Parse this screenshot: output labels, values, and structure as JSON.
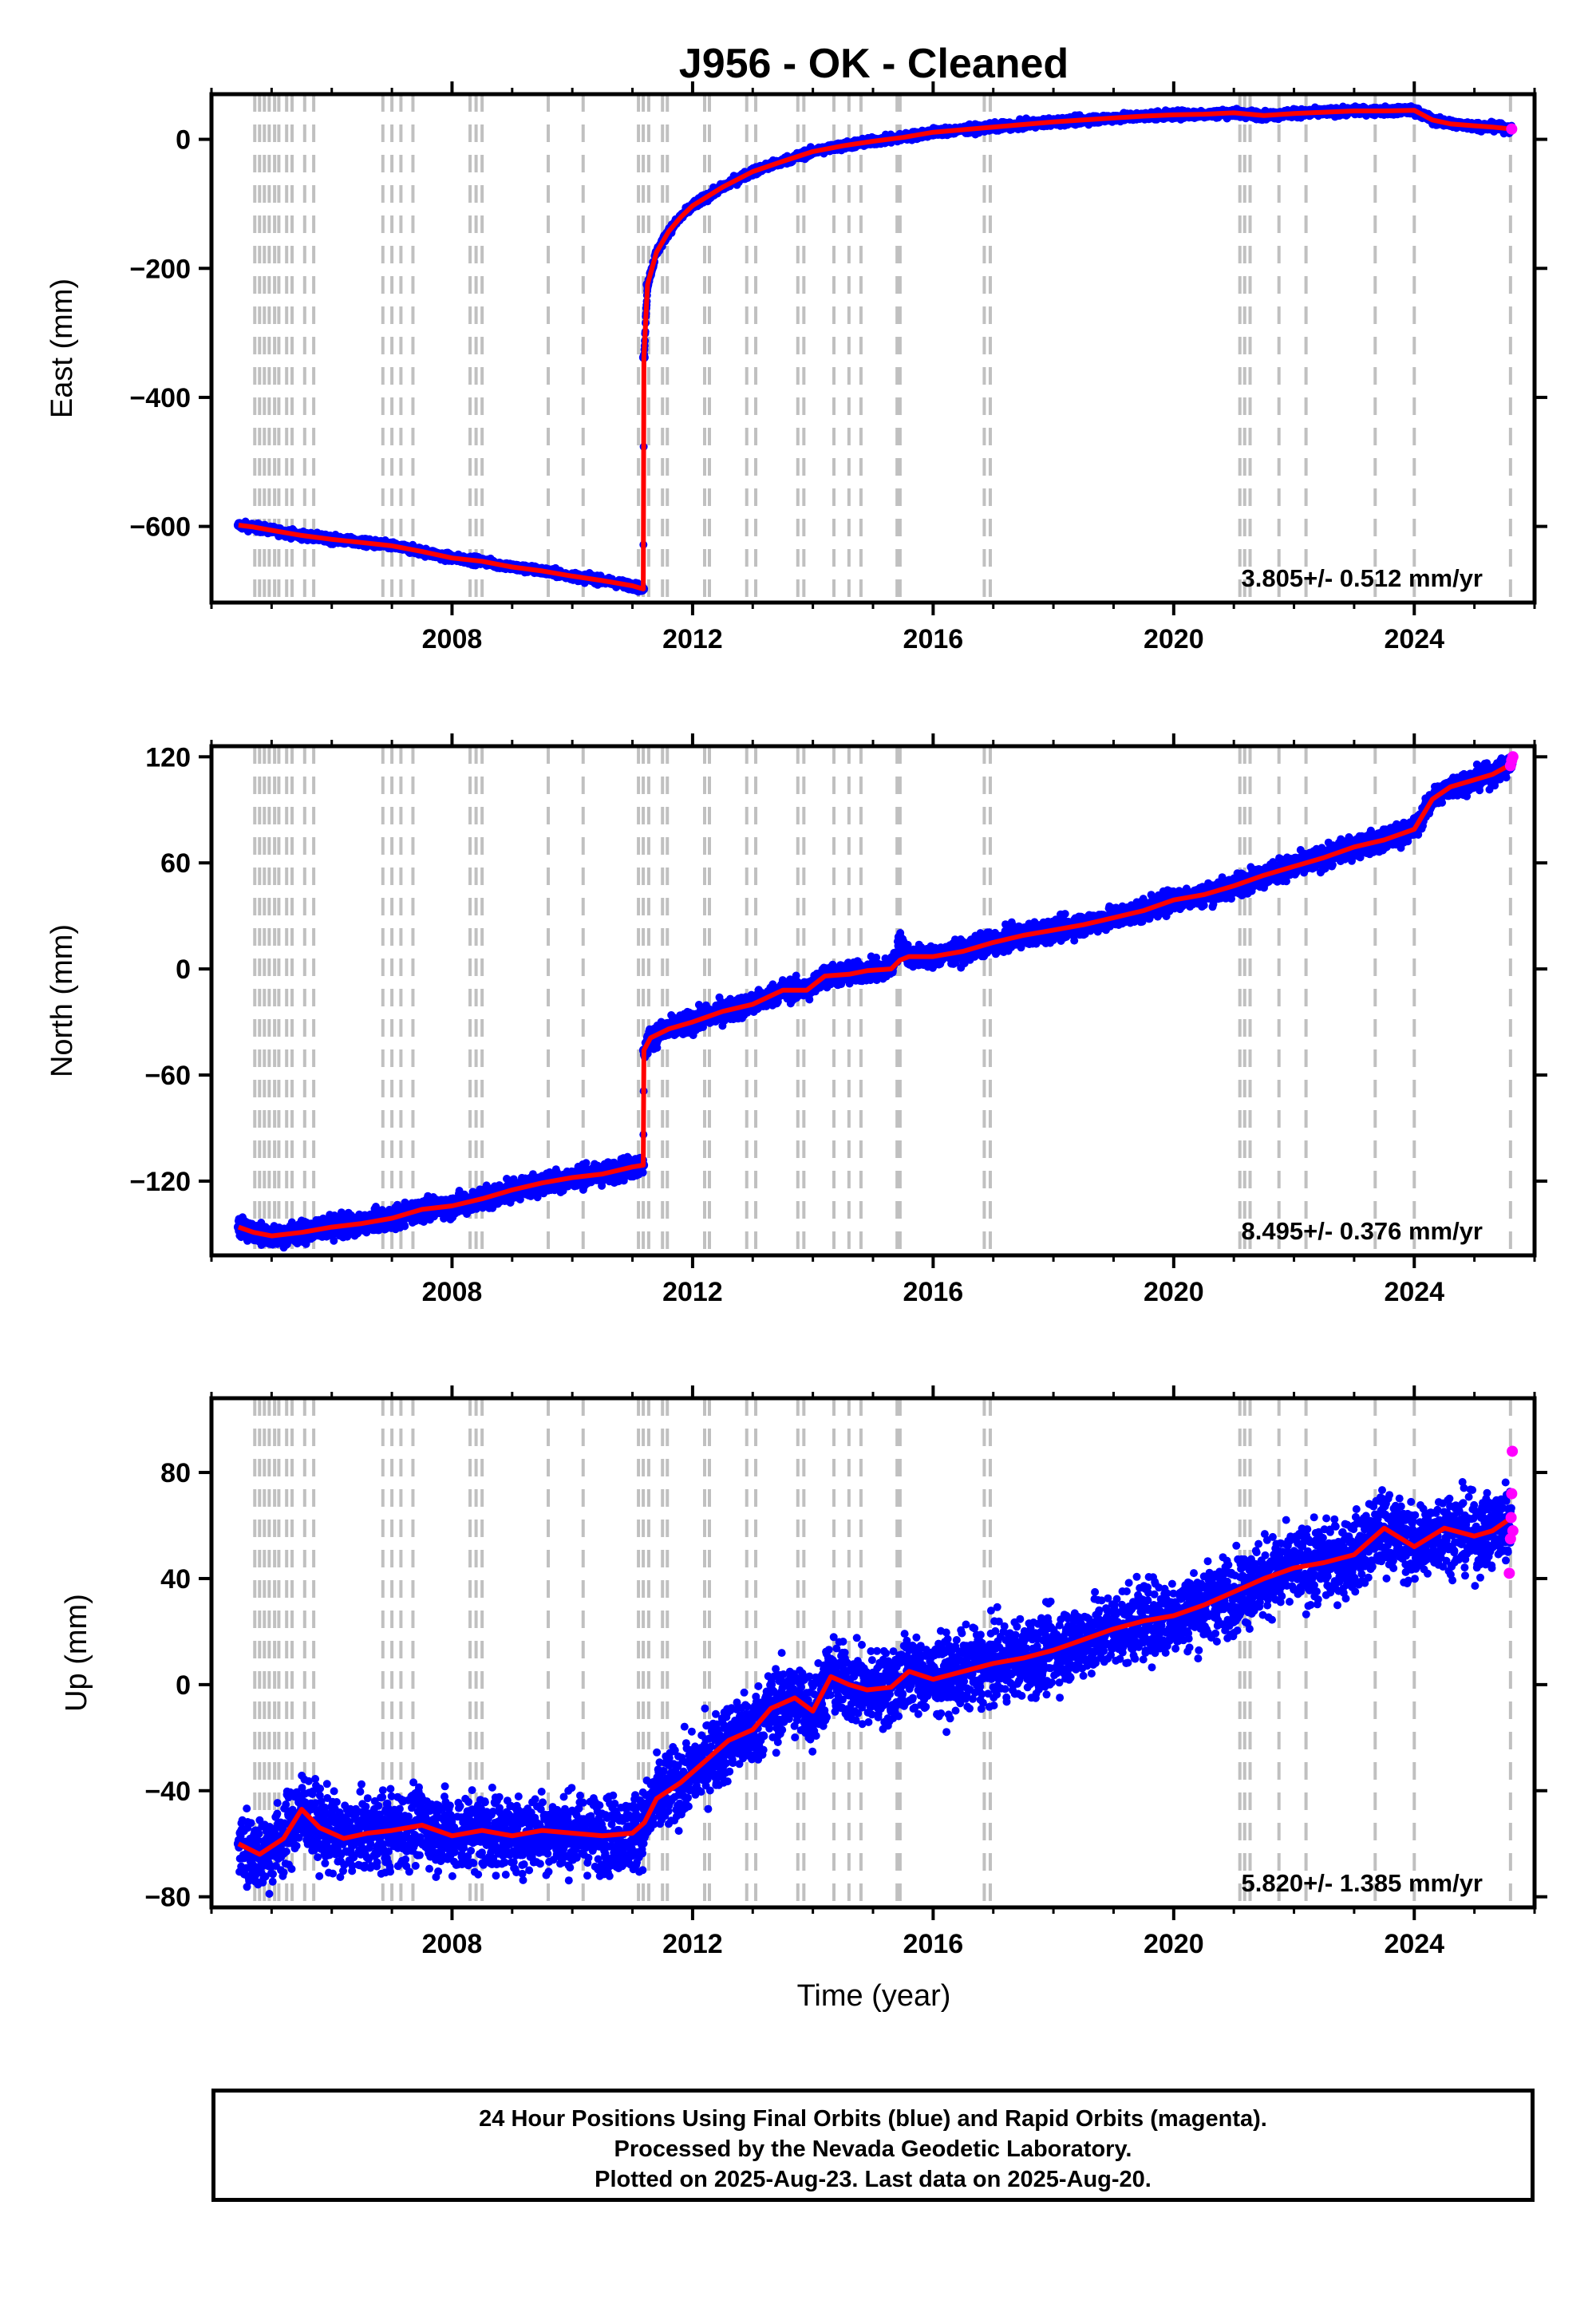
{
  "chart_data": {
    "type": "scatter",
    "title": "J956  - OK - Cleaned",
    "xlabel": "Time (year)",
    "xlim": [
      2004.0,
      2026.0
    ],
    "x_ticks": [
      2008,
      2012,
      2016,
      2020,
      2024
    ],
    "x_tick_labels": [
      "2008",
      "2012",
      "2016",
      "2020",
      "2024"
    ],
    "colors": {
      "final_orbits": "#0000ff",
      "rapid_orbits": "#ff00ff",
      "model": "#ff0000",
      "equipment_change_lines": "#c0c0c0"
    },
    "steps": [
      2004.72,
      2004.8,
      2004.88,
      2004.96,
      2005.05,
      2005.12,
      2005.25,
      2005.34,
      2005.55,
      2005.7,
      2006.85,
      2007.0,
      2007.15,
      2007.35,
      2008.3,
      2008.4,
      2008.5,
      2009.6,
      2010.18,
      2011.1,
      2011.18,
      2011.27,
      2011.5,
      2011.58,
      2012.2,
      2012.28,
      2012.9,
      2013.05,
      2013.75,
      2013.85,
      2014.35,
      2014.6,
      2014.8,
      2015.4,
      2015.45,
      2016.85,
      2016.95,
      2021.1,
      2021.18,
      2021.27,
      2021.75,
      2022.2,
      2023.35,
      2024.0,
      2025.6
    ],
    "panels": [
      {
        "ylabel": "East (mm)",
        "ylim": [
          -718,
          70
        ],
        "y_ticks": [
          0,
          -200,
          -400,
          -600
        ],
        "y_tick_labels": [
          "0",
          "−200",
          "−400",
          "−600"
        ],
        "rate_label": "3.805+/- 0.512 mm/yr",
        "series": [
          {
            "name": "Final Orbits",
            "type": "scatter",
            "x": [
              2004.45,
              2004.7,
              2005.0,
              2005.5,
              2006.0,
              2006.5,
              2007.0,
              2007.5,
              2008.0,
              2008.5,
              2009.0,
              2009.5,
              2010.0,
              2010.5,
              2011.0,
              2011.18,
              2011.19,
              2011.25,
              2011.4,
              2011.6,
              2011.8,
              2012.0,
              2012.5,
              2013.0,
              2013.5,
              2014.0,
              2014.5,
              2015.0,
              2015.5,
              2016.0,
              2016.5,
              2017.0,
              2017.5,
              2018.0,
              2018.5,
              2019.0,
              2019.5,
              2020.0,
              2020.5,
              2021.0,
              2021.5,
              2022.0,
              2022.5,
              2023.0,
              2023.5,
              2024.0,
              2024.3,
              2024.6,
              2025.0,
              2025.3,
              2025.62
            ],
            "y": [
              -598,
              -601,
              -606,
              -614,
              -620,
              -625,
              -630,
              -639,
              -649,
              -654,
              -663,
              -669,
              -677,
              -684,
              -692,
              -697,
              -338,
              -225,
              -175,
              -143,
              -121,
              -103,
              -74,
              -50,
              -34,
              -19,
              -10,
              -3,
              3,
              11,
              15,
              19,
              23,
              27,
              30,
              33,
              36,
              38,
              39,
              41,
              37,
              40,
              42,
              44,
              44,
              45,
              30,
              24,
              21,
              19,
              16
            ]
          },
          {
            "name": "Rapid Orbits",
            "type": "scatter",
            "x": [
              2025.62
            ],
            "y": [
              16
            ]
          },
          {
            "name": "Model",
            "type": "line",
            "x": [
              2004.45,
              2004.7,
              2005.0,
              2005.5,
              2006.0,
              2006.5,
              2007.0,
              2007.5,
              2008.0,
              2008.5,
              2009.0,
              2009.5,
              2010.0,
              2010.5,
              2011.0,
              2011.18,
              2011.19,
              2011.25,
              2011.4,
              2011.6,
              2011.8,
              2012.0,
              2012.5,
              2013.0,
              2013.5,
              2014.0,
              2014.5,
              2015.0,
              2015.5,
              2016.0,
              2016.5,
              2017.0,
              2017.5,
              2018.0,
              2018.5,
              2019.0,
              2019.5,
              2020.0,
              2020.5,
              2021.0,
              2021.5,
              2022.0,
              2022.5,
              2023.0,
              2023.5,
              2024.0,
              2024.3,
              2024.6,
              2025.0,
              2025.3,
              2025.62
            ],
            "y": [
              -598,
              -601,
              -606,
              -614,
              -620,
              -625,
              -630,
              -639,
              -649,
              -654,
              -663,
              -669,
              -677,
              -684,
              -692,
              -697,
              -338,
              -225,
              -175,
              -143,
              -121,
              -103,
              -74,
              -50,
              -34,
              -19,
              -10,
              -3,
              3,
              11,
              15,
              19,
              23,
              27,
              30,
              33,
              36,
              38,
              39,
              41,
              37,
              40,
              42,
              44,
              44,
              45,
              30,
              24,
              21,
              19,
              16
            ]
          }
        ]
      },
      {
        "ylabel": "North (mm)",
        "ylim": [
          -162,
          126
        ],
        "y_ticks": [
          120,
          60,
          0,
          -60,
          -120
        ],
        "y_tick_labels": [
          "120",
          "60",
          "0",
          "−60",
          "−120"
        ],
        "rate_label": "8.495+/- 0.376 mm/yr",
        "series": [
          {
            "name": "Final Orbits",
            "type": "scatter",
            "x": [
              2004.45,
              2004.7,
              2005.0,
              2005.5,
              2006.0,
              2006.5,
              2007.0,
              2007.5,
              2008.0,
              2008.5,
              2009.0,
              2009.5,
              2010.0,
              2010.5,
              2011.0,
              2011.18,
              2011.19,
              2011.3,
              2011.6,
              2012.0,
              2012.5,
              2013.0,
              2013.5,
              2013.9,
              2014.2,
              2014.6,
              2014.9,
              2015.3,
              2015.45,
              2015.6,
              2015.8,
              2016.0,
              2016.5,
              2017.0,
              2017.5,
              2018.0,
              2018.5,
              2019.0,
              2019.5,
              2020.0,
              2020.5,
              2021.0,
              2021.5,
              2022.0,
              2022.5,
              2023.0,
              2023.5,
              2024.0,
              2024.3,
              2024.6,
              2025.0,
              2025.3,
              2025.62
            ],
            "y": [
              -146,
              -149,
              -151,
              -149,
              -146,
              -144,
              -141,
              -136,
              -134,
              -130,
              -125,
              -121,
              -118,
              -116,
              -112,
              -111,
              -46,
              -39,
              -34,
              -30,
              -24,
              -20,
              -12,
              -12,
              -4,
              -3,
              -1,
              0,
              15,
              7,
              7,
              7,
              10,
              15,
              19,
              22,
              25,
              29,
              33,
              39,
              42,
              47,
              53,
              58,
              63,
              69,
              73,
              79,
              96,
              103,
              107,
              110,
              116
            ]
          },
          {
            "name": "Rapid Orbits",
            "type": "scatter",
            "x": [
              2025.6,
              2025.62,
              2025.64
            ],
            "y": [
              115,
              118,
              120
            ]
          },
          {
            "name": "Model",
            "type": "line",
            "x": [
              2004.45,
              2004.7,
              2005.0,
              2005.5,
              2006.0,
              2006.5,
              2007.0,
              2007.5,
              2008.0,
              2008.5,
              2009.0,
              2009.5,
              2010.0,
              2010.5,
              2011.0,
              2011.18,
              2011.19,
              2011.3,
              2011.6,
              2012.0,
              2012.5,
              2013.0,
              2013.5,
              2013.9,
              2014.2,
              2014.6,
              2014.9,
              2015.3,
              2015.45,
              2015.6,
              2015.8,
              2016.0,
              2016.5,
              2017.0,
              2017.5,
              2018.0,
              2018.5,
              2019.0,
              2019.5,
              2020.0,
              2020.5,
              2021.0,
              2021.5,
              2022.0,
              2022.5,
              2023.0,
              2023.5,
              2024.0,
              2024.3,
              2024.6,
              2025.0,
              2025.3,
              2025.62
            ],
            "y": [
              -146,
              -149,
              -151,
              -149,
              -146,
              -144,
              -141,
              -136,
              -134,
              -130,
              -125,
              -121,
              -118,
              -116,
              -112,
              -111,
              -46,
              -39,
              -34,
              -30,
              -24,
              -20,
              -12,
              -12,
              -4,
              -3,
              -1,
              0,
              5,
              7,
              7,
              7,
              10,
              15,
              19,
              22,
              25,
              29,
              33,
              39,
              42,
              47,
              53,
              58,
              63,
              69,
              73,
              79,
              96,
              103,
              107,
              110,
              116
            ]
          }
        ]
      },
      {
        "ylabel": "Up (mm)",
        "ylim": [
          -84,
          108
        ],
        "y_ticks": [
          80,
          40,
          0,
          -40,
          -80
        ],
        "y_tick_labels": [
          "80",
          "40",
          "0",
          "−40",
          "−80"
        ],
        "rate_label": "5.820+/- 1.385 mm/yr",
        "series": [
          {
            "name": "Final Orbits",
            "type": "scatter",
            "x": [
              2004.45,
              2004.8,
              2005.2,
              2005.5,
              2005.8,
              2006.2,
              2006.6,
              2007.0,
              2007.5,
              2008.0,
              2008.5,
              2009.0,
              2009.5,
              2010.0,
              2010.5,
              2011.0,
              2011.2,
              2011.4,
              2011.8,
              2012.2,
              2012.6,
              2013.0,
              2013.3,
              2013.7,
              2014.0,
              2014.3,
              2014.6,
              2014.9,
              2015.3,
              2015.6,
              2016.0,
              2016.5,
              2017.0,
              2017.5,
              2018.0,
              2018.5,
              2019.0,
              2019.5,
              2020.0,
              2020.5,
              2021.0,
              2021.5,
              2022.0,
              2022.5,
              2023.0,
              2023.5,
              2024.0,
              2024.5,
              2025.0,
              2025.3,
              2025.62
            ],
            "y": [
              -60,
              -64,
              -58,
              -47,
              -54,
              -58,
              -56,
              -55,
              -53,
              -57,
              -55,
              -57,
              -55,
              -56,
              -57,
              -56,
              -52,
              -43,
              -37,
              -29,
              -21,
              -17,
              -9,
              -5,
              -10,
              3,
              0,
              -2,
              -1,
              5,
              2,
              5,
              8,
              10,
              13,
              17,
              21,
              24,
              26,
              30,
              35,
              40,
              44,
              46,
              49,
              59,
              52,
              59,
              56,
              58,
              63
            ]
          },
          {
            "name": "Rapid Orbits",
            "type": "scatter",
            "x": [
              2025.58,
              2025.6,
              2025.61,
              2025.62,
              2025.63,
              2025.64
            ],
            "y": [
              42,
              55,
              63,
              72,
              88,
              58
            ]
          },
          {
            "name": "Model",
            "type": "line",
            "x": [
              2004.45,
              2004.8,
              2005.2,
              2005.5,
              2005.8,
              2006.2,
              2006.6,
              2007.0,
              2007.5,
              2008.0,
              2008.5,
              2009.0,
              2009.5,
              2010.0,
              2010.5,
              2011.0,
              2011.2,
              2011.4,
              2011.8,
              2012.2,
              2012.6,
              2013.0,
              2013.3,
              2013.7,
              2014.0,
              2014.3,
              2014.6,
              2014.9,
              2015.3,
              2015.6,
              2016.0,
              2016.5,
              2017.0,
              2017.5,
              2018.0,
              2018.5,
              2019.0,
              2019.5,
              2020.0,
              2020.5,
              2021.0,
              2021.5,
              2022.0,
              2022.5,
              2023.0,
              2023.5,
              2024.0,
              2024.5,
              2025.0,
              2025.3,
              2025.62
            ],
            "y": [
              -60,
              -64,
              -58,
              -47,
              -54,
              -58,
              -56,
              -55,
              -53,
              -57,
              -55,
              -57,
              -55,
              -56,
              -57,
              -56,
              -52,
              -43,
              -37,
              -29,
              -21,
              -17,
              -9,
              -5,
              -10,
              3,
              0,
              -2,
              -1,
              5,
              2,
              5,
              8,
              10,
              13,
              17,
              21,
              24,
              26,
              30,
              35,
              40,
              44,
              46,
              49,
              59,
              52,
              59,
              56,
              58,
              63
            ]
          }
        ]
      }
    ]
  },
  "footer": {
    "line1": "24 Hour Positions Using Final Orbits (blue) and Rapid Orbits (magenta).",
    "line2": "Processed by the Nevada Geodetic Laboratory.",
    "line3": "Plotted on 2025-Aug-23. Last data on 2025-Aug-20."
  }
}
